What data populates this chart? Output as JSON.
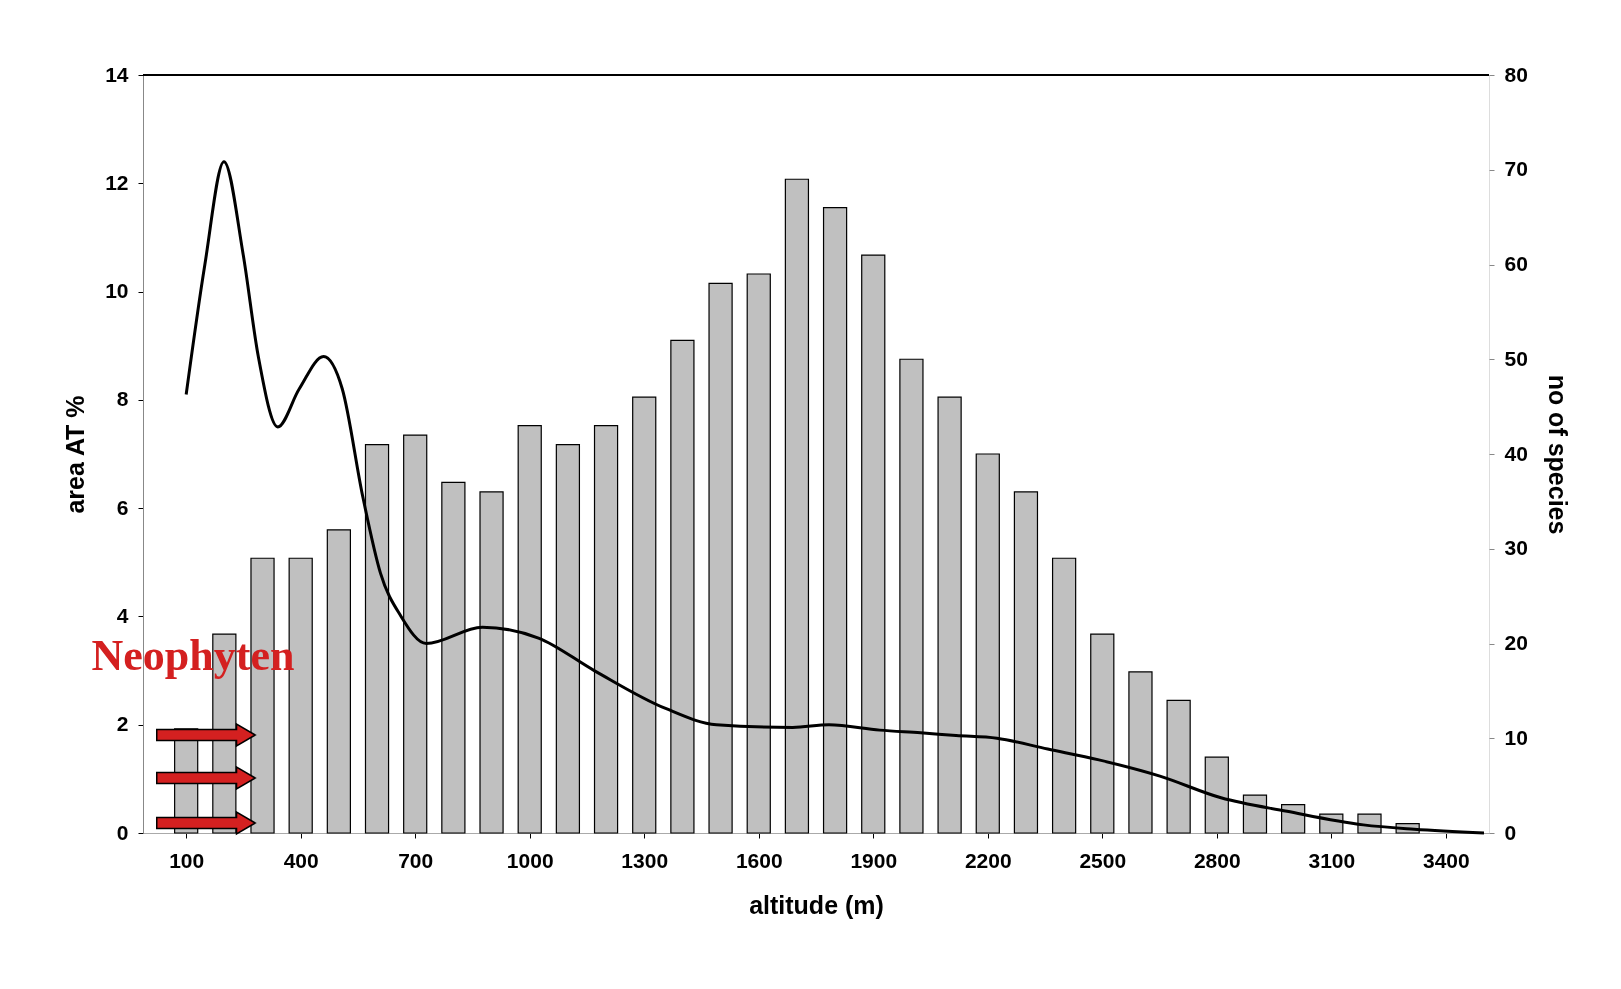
{
  "chart_data": {
    "type": "bar",
    "xlabel": "altitude (m)",
    "ylabel": "area AT %",
    "y2label": "no of species",
    "xlim": [
      0,
      3500
    ],
    "xticks": [
      100,
      400,
      700,
      1000,
      1300,
      1600,
      1900,
      2200,
      2500,
      2800,
      3100,
      3400
    ],
    "ylim": [
      0,
      14
    ],
    "yticks": [
      0,
      2,
      4,
      6,
      8,
      10,
      12,
      14
    ],
    "y2lim": [
      0,
      80
    ],
    "y2ticks": [
      0,
      10,
      20,
      30,
      40,
      50,
      60,
      70,
      80
    ],
    "grid": false,
    "annotations": [
      "Neophyten"
    ],
    "series": [
      {
        "axis": "y2",
        "color": "#c0c0c0",
        "x": [
          100,
          200,
          300,
          400,
          500,
          600,
          700,
          800,
          900,
          1000,
          1100,
          1200,
          1300,
          1400,
          1500,
          1600,
          1700,
          1800,
          1900,
          2000,
          2100,
          2200,
          2300,
          2400,
          2500,
          2600,
          2700,
          2800,
          2900,
          3000,
          3100,
          3200,
          3300,
          3400
        ],
        "values": [
          11,
          21,
          29,
          29,
          32,
          41,
          42,
          37,
          36,
          43,
          41,
          43,
          46,
          52,
          58,
          59,
          69,
          66,
          61,
          50,
          46,
          40,
          36,
          29,
          21,
          17,
          14,
          8,
          4,
          3,
          2,
          2,
          1,
          0
        ]
      },
      {
        "type": "line",
        "color": "#000000",
        "x": [
          100,
          149,
          199,
          249,
          289,
          340,
          396,
          460,
          509,
          563,
          609,
          663,
          729,
          876,
          1023,
          1169,
          1356,
          1489,
          1689,
          1784,
          1917,
          2024,
          2117,
          2224,
          2357,
          2491,
          2651,
          2811,
          2984,
          3184,
          3317,
          3500
        ],
        "values": [
          8.1,
          10.5,
          12.4,
          10.7,
          8.8,
          7.5,
          8.2,
          8.8,
          8.2,
          6.2,
          4.8,
          4.0,
          3.5,
          3.8,
          3.6,
          3.0,
          2.3,
          2.0,
          1.95,
          2.0,
          1.9,
          1.85,
          1.8,
          1.75,
          1.55,
          1.35,
          1.05,
          0.65,
          0.4,
          0.15,
          0.07,
          0
        ]
      }
    ]
  }
}
